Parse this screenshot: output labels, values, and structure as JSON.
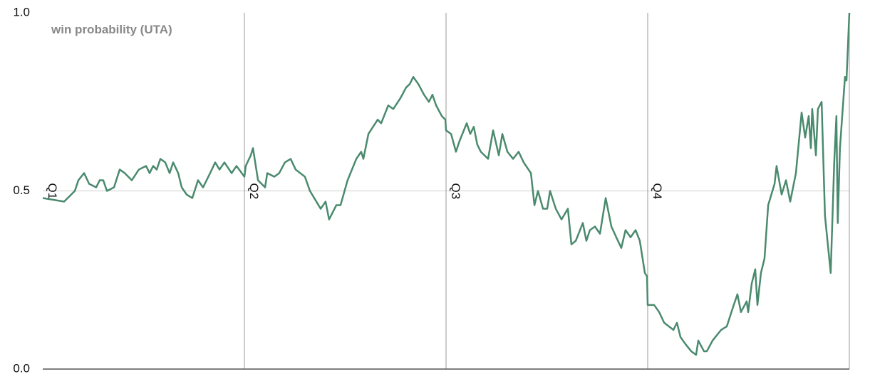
{
  "chart_data": {
    "type": "line",
    "title": "win probability (UTA)",
    "xlim": [
      0,
      48
    ],
    "xticks": [
      {
        "value": 0,
        "label": "Q1"
      },
      {
        "value": 12,
        "label": "Q2"
      },
      {
        "value": 24,
        "label": "Q3"
      },
      {
        "value": 36,
        "label": "Q4"
      }
    ],
    "ylim": [
      0,
      1
    ],
    "yticks": [
      {
        "value": 0,
        "label": "0.0"
      },
      0.5,
      {
        "value": 1,
        "label": "1.0"
      }
    ],
    "grid": true,
    "series": [
      {
        "name": "UTA",
        "color": "#4a8a6e",
        "x": [
          0,
          1.27,
          1.91,
          2.12,
          2.46,
          2.76,
          3.18,
          3.39,
          3.6,
          3.82,
          4.24,
          4.58,
          4.88,
          5.3,
          5.72,
          6.15,
          6.36,
          6.57,
          6.78,
          7.0,
          7.29,
          7.55,
          7.76,
          8.06,
          8.27,
          8.56,
          8.9,
          9.24,
          9.54,
          9.96,
          10.26,
          10.52,
          10.81,
          11.24,
          11.53,
          12.0,
          12.08,
          12.38,
          12.51,
          12.81,
          13.23,
          13.36,
          13.78,
          14.07,
          14.41,
          14.75,
          15.05,
          15.6,
          15.9,
          16.54,
          16.83,
          17.04,
          17.47,
          17.72,
          18.14,
          18.66,
          18.95,
          19.08,
          19.38,
          19.93,
          20.14,
          20.56,
          20.86,
          21.28,
          21.62,
          21.84,
          22.05,
          22.35,
          22.69,
          22.98,
          23.19,
          23.41,
          23.75,
          23.96,
          24.0,
          24.3,
          24.59,
          24.8,
          25.23,
          25.44,
          25.65,
          25.86,
          26.07,
          26.5,
          26.8,
          27.14,
          27.35,
          27.65,
          27.99,
          28.32,
          28.62,
          29.05,
          29.26,
          29.47,
          29.77,
          30.02,
          30.19,
          30.53,
          30.87,
          31.25,
          31.46,
          31.72,
          32.14,
          32.35,
          32.56,
          32.86,
          33.16,
          33.5,
          33.84,
          34.13,
          34.43,
          34.68,
          34.98,
          35.28,
          35.53,
          35.83,
          35.96,
          36.0,
          36.38,
          36.68,
          36.98,
          37.53,
          37.74,
          37.95,
          38.25,
          38.59,
          38.88,
          39.01,
          39.35,
          39.52,
          39.86,
          40.37,
          40.71,
          41.05,
          41.34,
          41.55,
          41.89,
          41.98,
          42.19,
          42.4,
          42.53,
          42.74,
          42.95,
          43.17,
          43.55,
          43.67,
          43.97,
          44.23,
          44.48,
          44.82,
          45.16,
          45.37,
          45.58,
          45.71,
          45.79,
          46.01,
          46.13,
          46.35,
          46.55,
          46.89,
          47.1,
          47.23,
          47.31,
          47.44,
          47.74,
          47.83,
          48
        ],
        "values": [
          0.48,
          0.47,
          0.5,
          0.53,
          0.55,
          0.52,
          0.51,
          0.53,
          0.53,
          0.5,
          0.51,
          0.56,
          0.55,
          0.53,
          0.56,
          0.57,
          0.55,
          0.57,
          0.56,
          0.59,
          0.58,
          0.55,
          0.58,
          0.55,
          0.51,
          0.49,
          0.48,
          0.53,
          0.51,
          0.55,
          0.58,
          0.56,
          0.58,
          0.55,
          0.57,
          0.54,
          0.57,
          0.6,
          0.62,
          0.53,
          0.51,
          0.55,
          0.54,
          0.55,
          0.58,
          0.59,
          0.56,
          0.54,
          0.5,
          0.45,
          0.47,
          0.42,
          0.46,
          0.46,
          0.53,
          0.59,
          0.61,
          0.59,
          0.66,
          0.7,
          0.69,
          0.74,
          0.73,
          0.76,
          0.79,
          0.8,
          0.82,
          0.8,
          0.77,
          0.75,
          0.77,
          0.74,
          0.71,
          0.7,
          0.67,
          0.66,
          0.61,
          0.64,
          0.69,
          0.66,
          0.68,
          0.63,
          0.61,
          0.59,
          0.67,
          0.6,
          0.66,
          0.61,
          0.59,
          0.61,
          0.58,
          0.55,
          0.46,
          0.5,
          0.45,
          0.45,
          0.5,
          0.45,
          0.42,
          0.45,
          0.35,
          0.36,
          0.41,
          0.36,
          0.39,
          0.4,
          0.38,
          0.48,
          0.4,
          0.37,
          0.34,
          0.39,
          0.37,
          0.39,
          0.36,
          0.27,
          0.26,
          0.18,
          0.18,
          0.16,
          0.13,
          0.11,
          0.13,
          0.09,
          0.07,
          0.05,
          0.04,
          0.08,
          0.05,
          0.05,
          0.08,
          0.11,
          0.12,
          0.17,
          0.21,
          0.16,
          0.19,
          0.16,
          0.24,
          0.28,
          0.18,
          0.27,
          0.31,
          0.46,
          0.52,
          0.57,
          0.49,
          0.53,
          0.47,
          0.55,
          0.72,
          0.65,
          0.71,
          0.62,
          0.73,
          0.6,
          0.73,
          0.75,
          0.43,
          0.27,
          0.58,
          0.71,
          0.41,
          0.62,
          0.82,
          0.81,
          1.0
        ]
      }
    ]
  }
}
